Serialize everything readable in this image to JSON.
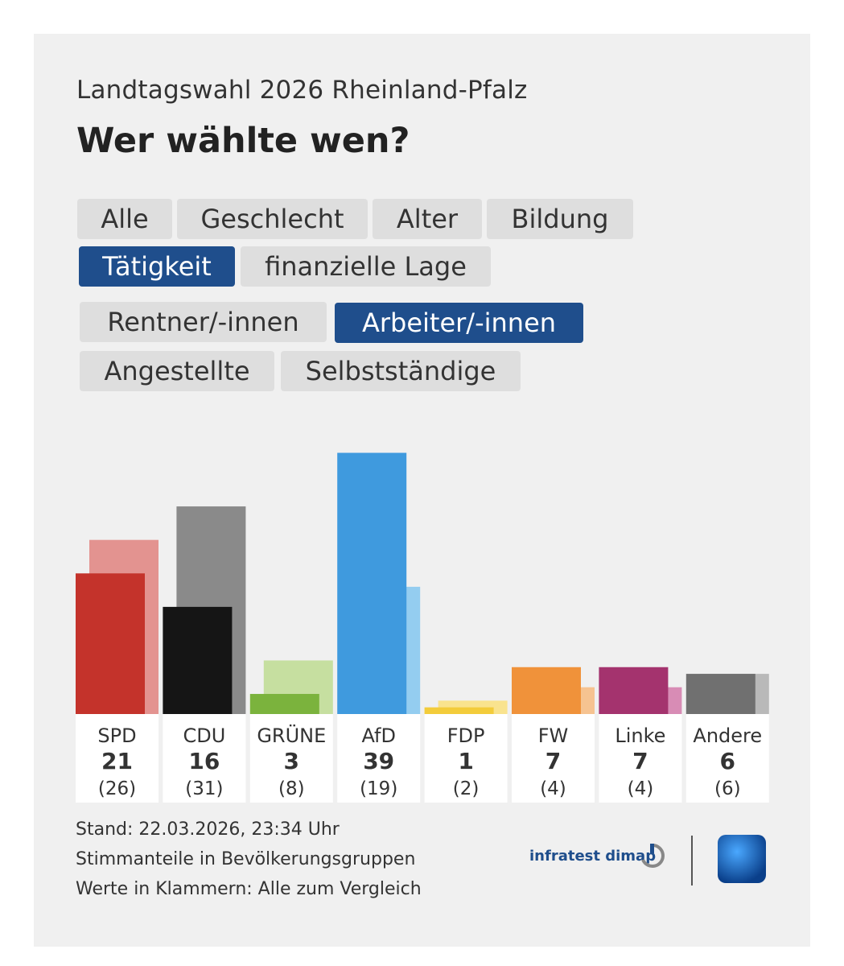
{
  "header": {
    "subtitle": "Landtagswahl 2026 Rheinland-Pfalz",
    "title": "Wer wählte wen?"
  },
  "category_tabs": [
    {
      "label": "Alle",
      "active": false
    },
    {
      "label": "Geschlecht",
      "active": false
    },
    {
      "label": "Alter",
      "active": false
    },
    {
      "label": "Bildung",
      "active": false
    },
    {
      "label": "Tätigkeit",
      "active": true
    },
    {
      "label": "finanzielle Lage",
      "active": false
    }
  ],
  "group_tabs": [
    {
      "label": "Rentner/-innen",
      "active": false
    },
    {
      "label": "Arbeiter/-innen",
      "active": true
    },
    {
      "label": "Angestellte",
      "active": false
    },
    {
      "label": "Selbstständige",
      "active": false
    }
  ],
  "chart_data": {
    "type": "bar",
    "categories": [
      "SPD",
      "CDU",
      "GRÜNE",
      "AfD",
      "FDP",
      "FW",
      "Linke",
      "Andere"
    ],
    "series": [
      {
        "values": [
          21,
          16,
          3,
          39,
          1,
          7,
          7,
          6
        ]
      },
      {
        "values": [
          26,
          31,
          8,
          19,
          2,
          4,
          4,
          6
        ]
      }
    ],
    "value_labels": [
      "21",
      "16",
      "3",
      "39",
      "1",
      "7",
      "7",
      "6"
    ],
    "comparison_labels": [
      "(26)",
      "(31)",
      "(8)",
      "(19)",
      "(2)",
      "(4)",
      "(4)",
      "(6)"
    ],
    "colors": {
      "primary": [
        "#c4332b",
        "#151515",
        "#7bb33d",
        "#3f9ade",
        "#f3cc3b",
        "#f0923a",
        "#a4336e",
        "#707070"
      ],
      "comparison": [
        "#e39390",
        "#8a8a8a",
        "#c6dfa0",
        "#94cdf0",
        "#f9e38e",
        "#f6c391",
        "#d88cb5",
        "#b9b9b9"
      ]
    },
    "ylim": [
      0,
      40
    ]
  },
  "footer": {
    "line1": "Stand: 22.03.2026, 23:34 Uhr",
    "line2": "Stimmanteile in Bevölkerungsgruppen",
    "line3": "Werte in Klammern: Alle zum Vergleich",
    "brand": "infratest dimap"
  },
  "icons": {
    "infratest": "infratest-logo-icon",
    "ard": "ard-tagesschau-icon"
  }
}
